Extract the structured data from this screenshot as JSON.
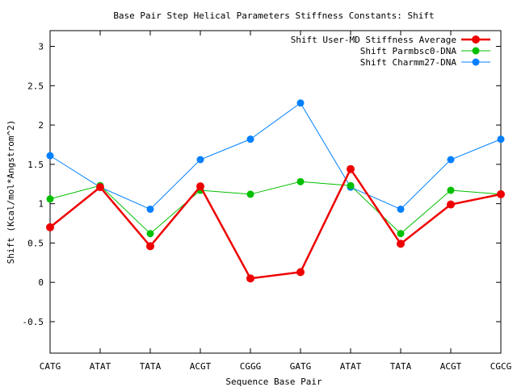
{
  "chart_data": {
    "type": "line",
    "title": "Base Pair Step Helical Parameters Stiffness Constants: Shift",
    "xlabel": "Sequence Base Pair",
    "ylabel": "Shift (Kcal/mol*Angstrom^2)",
    "categories": [
      "CATG",
      "ATAT",
      "TATA",
      "ACGT",
      "CGGG",
      "GATG",
      "ATAT",
      "TATA",
      "ACGT",
      "CGCG"
    ],
    "ylim": [
      -0.9,
      3.2
    ],
    "yticks": [
      "-0.5",
      "0",
      "0.5",
      "1",
      "1.5",
      "2",
      "2.5",
      "3"
    ],
    "grid": false,
    "legend_position": "top-right",
    "series": [
      {
        "name": "Shift User-MD Stiffness Average",
        "color": "#ee0000",
        "values": [
          0.7,
          1.21,
          0.46,
          1.22,
          0.05,
          0.13,
          1.44,
          0.49,
          0.99,
          1.12
        ]
      },
      {
        "name": "Shift Parmbsc0-DNA",
        "color": "#00c000",
        "values": [
          1.06,
          1.23,
          0.62,
          1.17,
          1.12,
          1.28,
          1.23,
          0.62,
          1.17,
          1.12
        ]
      },
      {
        "name": "Shift Charmm27-DNA",
        "color": "#0080ff",
        "values": [
          1.61,
          1.21,
          0.93,
          1.56,
          1.82,
          2.28,
          1.21,
          0.93,
          1.56,
          1.82
        ]
      }
    ]
  }
}
